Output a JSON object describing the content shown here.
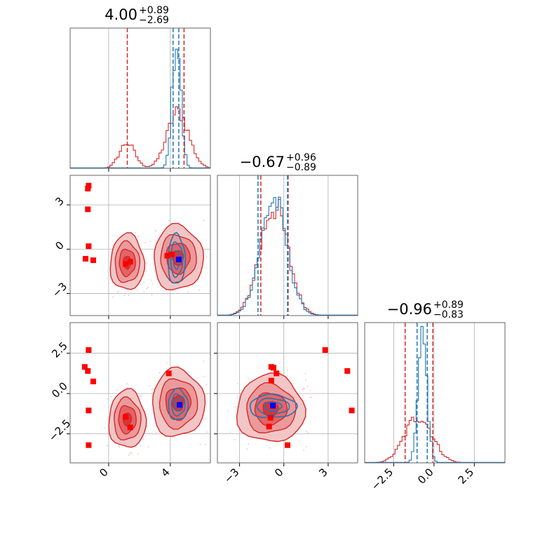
{
  "chart_data": {
    "type": "corner",
    "colors": {
      "red": "#d62728",
      "blue": "#1f77b4",
      "marker_blue": "#0000ff",
      "marker_red": "#ff0000",
      "grid": "#b0b0b0"
    },
    "params": [
      {
        "name": "p0",
        "range": [
          -2.5,
          6.6
        ],
        "ticks": [
          0,
          4
        ],
        "tick_labels": [
          "0",
          "4"
        ],
        "title": {
          "main": "4.00",
          "sup": "+0.89",
          "sub": "−2.69"
        },
        "quantiles_red": [
          1.21,
          4.89
        ],
        "quantiles_blue": [
          4.18,
          4.55
        ]
      },
      {
        "name": "p1",
        "range": [
          -4.5,
          5.0
        ],
        "ticks": [
          -3,
          0,
          3
        ],
        "tick_labels": [
          "−3",
          "0",
          "3"
        ],
        "title": {
          "main": "−0.67",
          "sup": "+0.96",
          "sub": "−0.89"
        },
        "quantiles_red": [
          -1.56,
          0.29
        ],
        "quantiles_blue": [
          -1.75,
          0.25
        ]
      },
      {
        "name": "p2",
        "range": [
          -4.3,
          4.4
        ],
        "ticks": [
          -2.5,
          0.0,
          2.5
        ],
        "tick_labels": [
          "−2.5",
          "0.0",
          "2.5"
        ],
        "title": {
          "main": "−0.96",
          "sup": "+0.89",
          "sub": "−0.83"
        },
        "quantiles_red": [
          -1.79,
          -0.07
        ],
        "quantiles_blue": [
          -1.05,
          -0.42
        ]
      }
    ],
    "hist_red": [
      {
        "mus": [
          1.2,
          4.5
        ],
        "sigmas": [
          0.5,
          0.7
        ],
        "weights": [
          0.45,
          1.0
        ],
        "peak": 0.4
      },
      {
        "mus": [
          -0.67
        ],
        "sigmas": [
          0.95
        ],
        "weights": [
          1.0
        ],
        "peak": 0.78
      },
      {
        "mus": [
          -0.96
        ],
        "sigmas": [
          0.85
        ],
        "weights": [
          1.0
        ],
        "peak": 0.33
      }
    ],
    "hist_blue": [
      {
        "mus": [
          4.4
        ],
        "sigmas": [
          0.28
        ],
        "weights": [
          1.0
        ],
        "peak": 0.92
      },
      {
        "mus": [
          -0.7
        ],
        "sigmas": [
          0.9
        ],
        "weights": [
          1.0
        ],
        "peak": 0.82
      },
      {
        "mus": [
          -0.7
        ],
        "sigmas": [
          0.28
        ],
        "weights": [
          1.0
        ],
        "peak": 0.85
      }
    ],
    "pairs": [
      {
        "xi": 0,
        "yi": 1,
        "red_blobs": [
          {
            "x": 1.2,
            "y": -0.9,
            "sx": 0.55,
            "sy": 0.95
          },
          {
            "x": 4.5,
            "y": -0.6,
            "sx": 0.8,
            "sy": 1.1
          }
        ],
        "blue_blobs": [
          {
            "x": 4.4,
            "y": -0.7,
            "sx": 0.35,
            "sy": 1.05
          }
        ],
        "red_markers": [
          [
            -1.3,
            4.3
          ],
          [
            -1.35,
            4.1
          ],
          [
            -1.35,
            2.7
          ],
          [
            -1.3,
            0.2
          ],
          [
            -1.5,
            -0.65
          ],
          [
            -1.0,
            -0.75
          ],
          [
            1.1,
            -1.0
          ],
          [
            1.4,
            -0.85
          ],
          [
            3.8,
            -0.45
          ],
          [
            4.1,
            -0.35
          ]
        ],
        "blue_marker": [
          4.55,
          -0.7
        ]
      },
      {
        "xi": 0,
        "yi": 2,
        "red_blobs": [
          {
            "x": 1.2,
            "y": -1.6,
            "sx": 0.6,
            "sy": 0.9
          },
          {
            "x": 4.5,
            "y": -0.6,
            "sx": 0.85,
            "sy": 1.05
          }
        ],
        "blue_blobs": [
          {
            "x": 4.5,
            "y": -0.7,
            "sx": 0.4,
            "sy": 0.6
          }
        ],
        "red_markers": [
          [
            -1.3,
            2.7
          ],
          [
            -1.55,
            1.65
          ],
          [
            -1.35,
            1.4
          ],
          [
            -1.0,
            0.75
          ],
          [
            -1.3,
            -1.05
          ],
          [
            -1.3,
            -3.2
          ],
          [
            1.1,
            -1.45
          ],
          [
            1.4,
            -2.1
          ],
          [
            3.9,
            1.25
          ]
        ],
        "blue_marker": [
          4.6,
          -0.7
        ]
      },
      {
        "xi": 1,
        "yi": 2,
        "red_blobs": [
          {
            "x": -0.9,
            "y": -0.95,
            "sx": 1.15,
            "sy": 1.05
          }
        ],
        "blue_blobs": [
          {
            "x": -0.75,
            "y": -0.8,
            "sx": 1.0,
            "sy": 0.45
          }
        ],
        "red_markers": [
          [
            -0.85,
            1.65
          ],
          [
            -0.7,
            1.6
          ],
          [
            -0.5,
            1.25
          ],
          [
            -0.85,
            0.8
          ],
          [
            -0.9,
            -1.5
          ],
          [
            -1.0,
            -2.05
          ],
          [
            0.25,
            -3.2
          ],
          [
            2.8,
            2.7
          ],
          [
            4.3,
            1.4
          ],
          [
            4.6,
            -1.05
          ]
        ],
        "blue_marker": [
          -0.75,
          -0.75
        ]
      }
    ]
  }
}
